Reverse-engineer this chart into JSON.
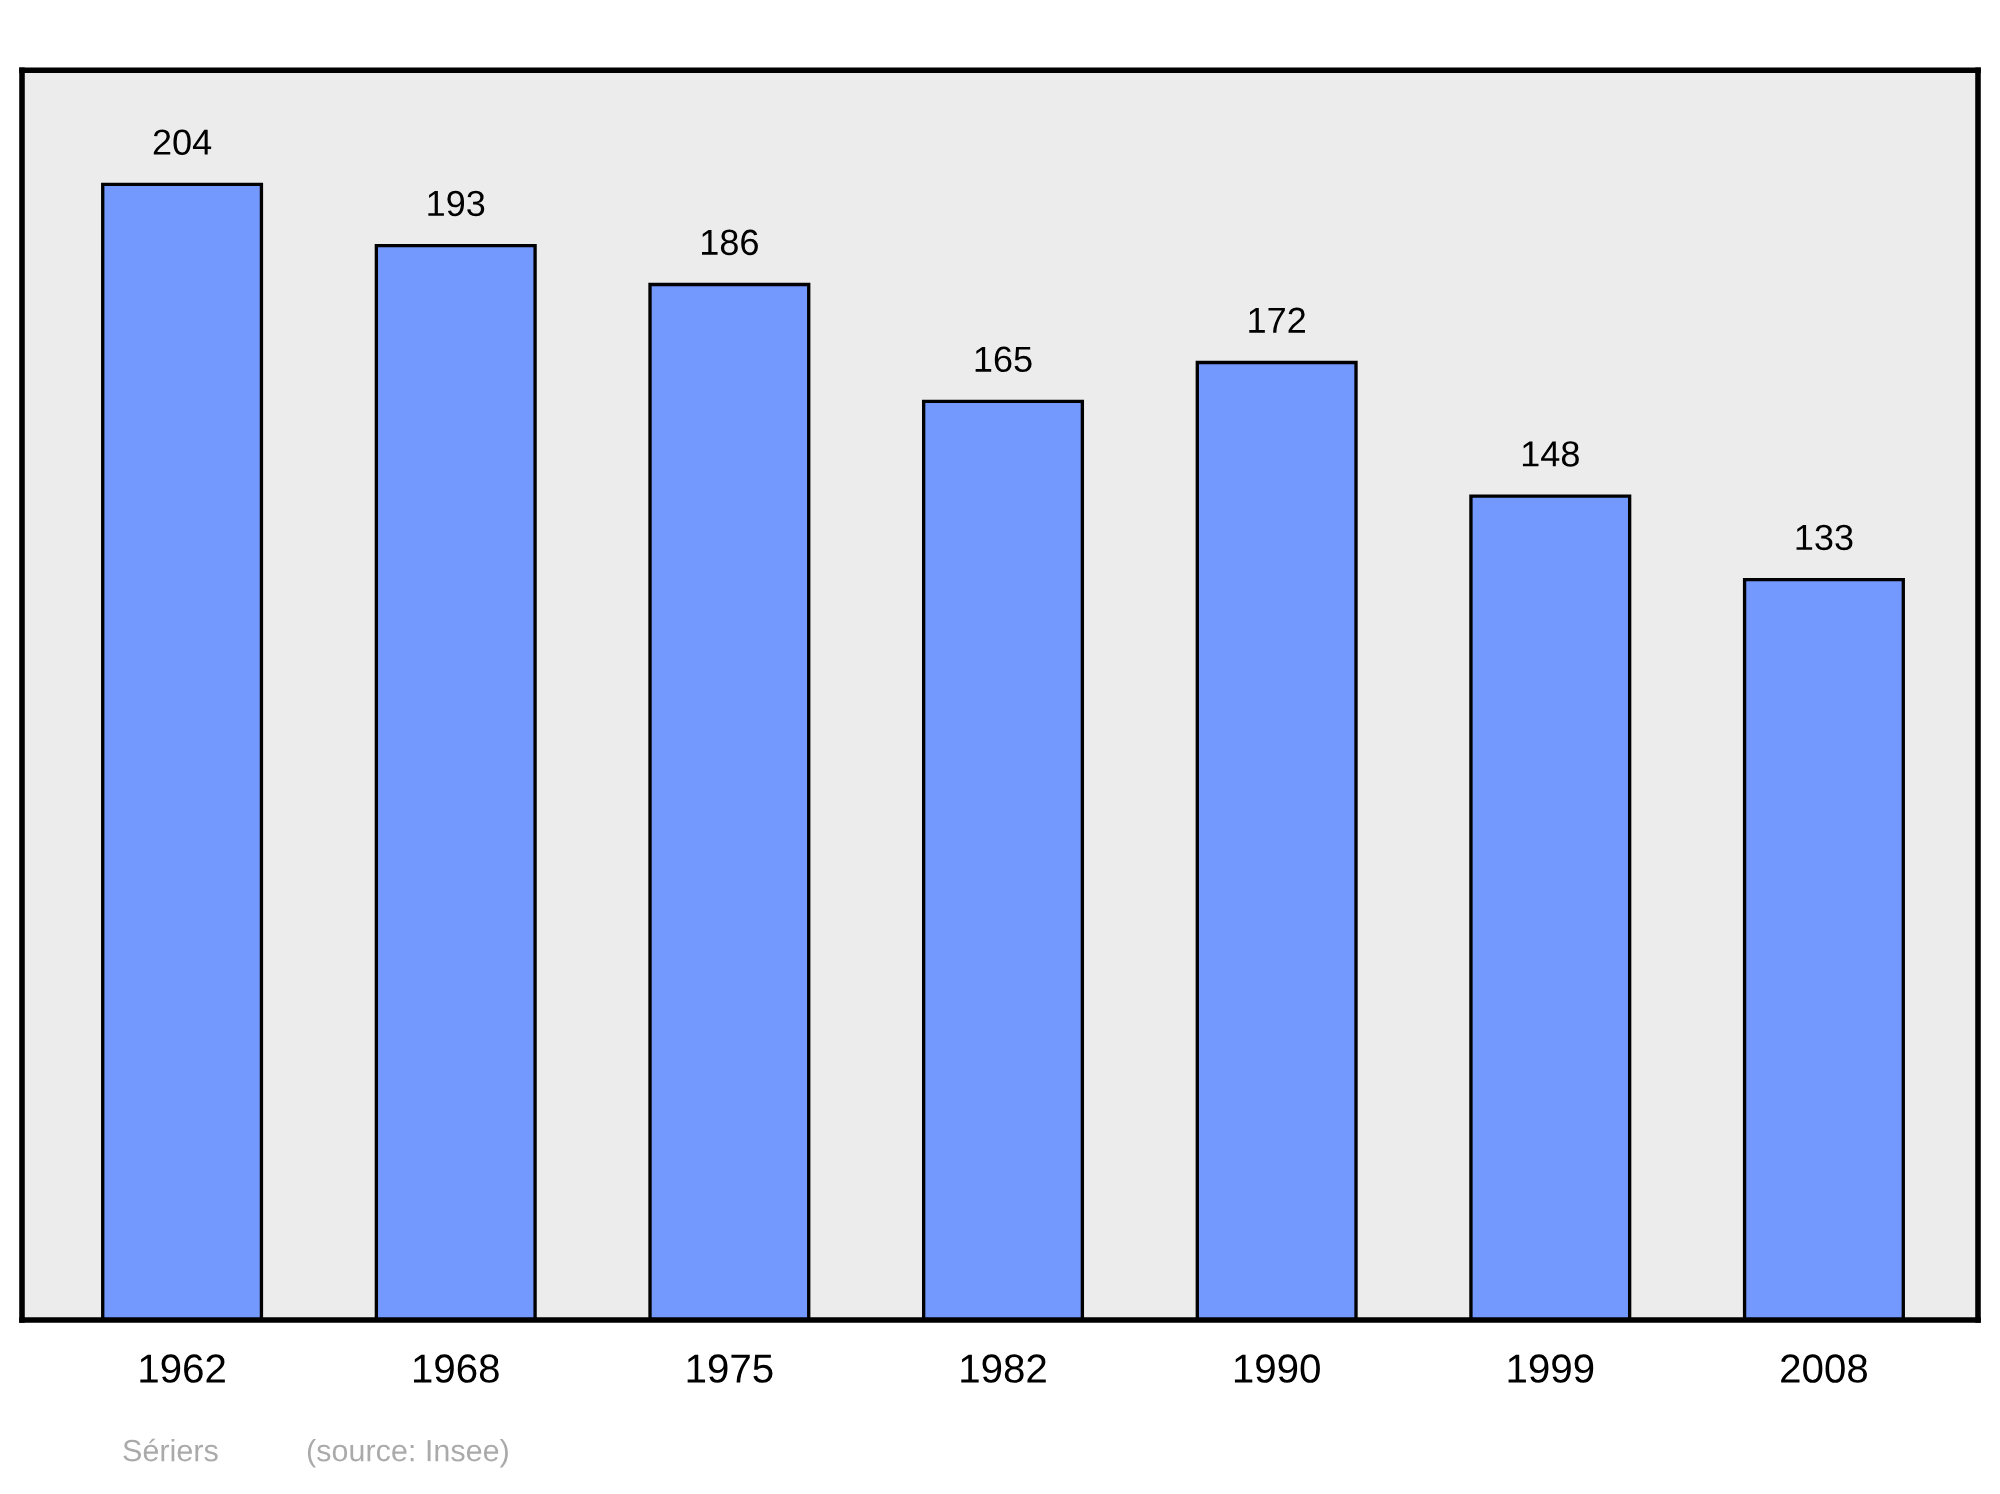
{
  "chart_data": {
    "type": "bar",
    "categories": [
      "1962",
      "1968",
      "1975",
      "1982",
      "1990",
      "1999",
      "2008"
    ],
    "values": [
      204,
      193,
      186,
      165,
      172,
      148,
      133
    ],
    "color": "#7399ff",
    "ylim": [
      0,
      224.5
    ],
    "data_labels": true,
    "grid": false,
    "legend": false,
    "tick_labels": "x",
    "annotations": [
      "Sériers",
      "(source: Insee)"
    ]
  }
}
